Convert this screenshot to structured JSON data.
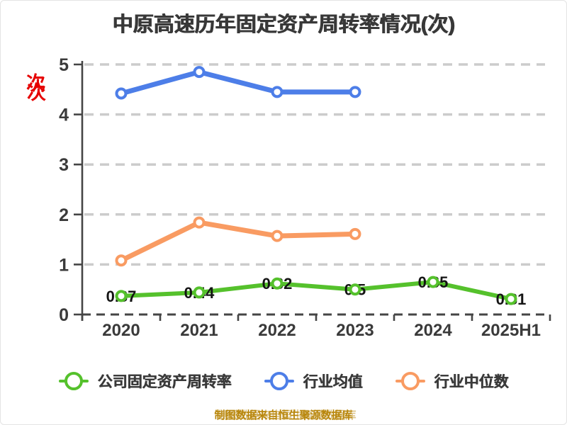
{
  "chart_data": {
    "type": "line",
    "title": "中原高速历年固定资产周转率情况(次)",
    "y_axis_unit": "次",
    "categories": [
      "2020",
      "2021",
      "2022",
      "2023",
      "2024",
      "2025H1"
    ],
    "ylim": [
      0,
      5
    ],
    "y_ticks": [
      0,
      1,
      2,
      3,
      4,
      5
    ],
    "grid": "horizontal-dashed",
    "legend_position": "bottom",
    "series": [
      {
        "name": "公司固定资产周转率",
        "color": "#55c12c",
        "values": [
          0.37,
          0.44,
          0.62,
          0.5,
          0.65,
          0.31
        ],
        "data_labels": [
          "0.37",
          "0.44",
          "0.62",
          "0.5",
          "0.65",
          "0.31"
        ]
      },
      {
        "name": "行业均值",
        "color": "#4d7ee8",
        "values": [
          4.42,
          4.85,
          4.45,
          4.45,
          null,
          null
        ],
        "data_labels": null
      },
      {
        "name": "行业中位数",
        "color": "#f99b62",
        "values": [
          1.08,
          1.84,
          1.57,
          1.61,
          null,
          null
        ],
        "data_labels": null
      }
    ],
    "footer": "制图数据来自恒生聚源数据库",
    "colors": {
      "grid": "#cccccc",
      "axis": "#454545",
      "tick_text": "#3a3a3a",
      "data_label_text": "#141414",
      "unit_label": "#e60000",
      "footer_text": "#b8860b",
      "title_text": "#383838"
    }
  }
}
